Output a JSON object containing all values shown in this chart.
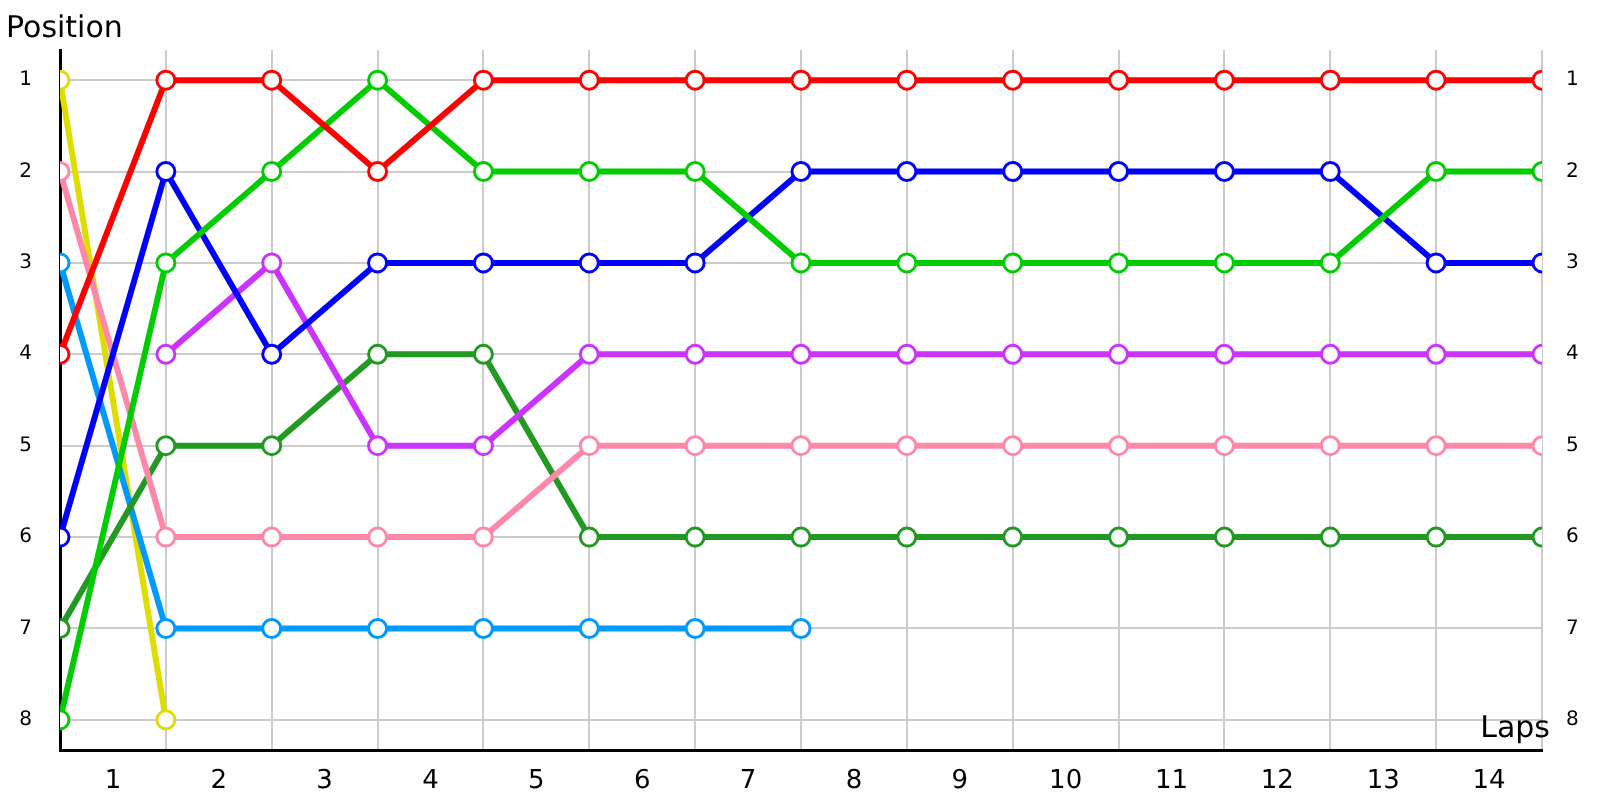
{
  "chart_data": {
    "type": "line",
    "xlabel": "Laps",
    "ylabel": "Position",
    "x": [
      0,
      1,
      2,
      3,
      4,
      5,
      6,
      7,
      8,
      9,
      10,
      11,
      12,
      13,
      14
    ],
    "series": [
      {
        "color": "#ff0000",
        "values": [
          4,
          1,
          1,
          2,
          1,
          1,
          1,
          1,
          1,
          1,
          1,
          1,
          1,
          1,
          1
        ]
      },
      {
        "color": "#00cc00",
        "values": [
          8,
          3,
          2,
          1,
          2,
          2,
          2,
          3,
          3,
          3,
          3,
          3,
          3,
          2,
          2
        ]
      },
      {
        "color": "#0000ff",
        "values": [
          6,
          2,
          4,
          3,
          3,
          3,
          3,
          2,
          2,
          2,
          2,
          2,
          2,
          3,
          3
        ]
      },
      {
        "color": "#cc33ff",
        "values": [
          null,
          4,
          3,
          5,
          5,
          4,
          4,
          4,
          4,
          4,
          4,
          4,
          4,
          4,
          4
        ]
      },
      {
        "color": "#ff88aa",
        "values": [
          2,
          6,
          6,
          6,
          6,
          5,
          5,
          5,
          5,
          5,
          5,
          5,
          5,
          5,
          5
        ]
      },
      {
        "color": "#229922",
        "values": [
          7,
          5,
          5,
          4,
          4,
          6,
          6,
          6,
          6,
          6,
          6,
          6,
          6,
          6,
          6
        ]
      },
      {
        "color": "#0099ff",
        "values": [
          3,
          7,
          7,
          7,
          7,
          7,
          7,
          7,
          null,
          null,
          null,
          null,
          null,
          null,
          null
        ]
      },
      {
        "color": "#dddd00",
        "values": [
          1,
          8,
          null,
          null,
          null,
          null,
          null,
          null,
          null,
          null,
          null,
          null,
          null,
          null,
          null
        ]
      }
    ],
    "xlim": [
      0,
      14
    ],
    "xticks": [
      {
        "value": 0.5,
        "label": "1"
      },
      {
        "value": 1.5,
        "label": "2"
      },
      {
        "value": 2.5,
        "label": "3"
      },
      {
        "value": 3.5,
        "label": "4"
      },
      {
        "value": 4.5,
        "label": "5"
      },
      {
        "value": 5.5,
        "label": "6"
      },
      {
        "value": 6.5,
        "label": "7"
      },
      {
        "value": 7.5,
        "label": "8"
      },
      {
        "value": 8.5,
        "label": "9"
      },
      {
        "value": 9.5,
        "label": "10"
      },
      {
        "value": 10.5,
        "label": "11"
      },
      {
        "value": 11.5,
        "label": "12"
      },
      {
        "value": 12.5,
        "label": "13"
      },
      {
        "value": 13.5,
        "label": "14"
      },
      {
        "value": 1,
        "label": null
      },
      {
        "value": 2,
        "label": null
      },
      {
        "value": 3,
        "label": null
      },
      {
        "value": 4,
        "label": null
      },
      {
        "value": 5,
        "label": null
      },
      {
        "value": 6,
        "label": null
      },
      {
        "value": 7,
        "label": null
      },
      {
        "value": 8,
        "label": null
      },
      {
        "value": 9,
        "label": null
      },
      {
        "value": 10,
        "label": null
      },
      {
        "value": 11,
        "label": null
      },
      {
        "value": 12,
        "label": null
      },
      {
        "value": 13,
        "label": null
      },
      {
        "value": 14,
        "label": null
      }
    ],
    "ylim": [
      8.33,
      0.67
    ],
    "yticks": [
      1,
      2,
      3,
      4,
      5,
      6,
      7,
      8
    ],
    "y2lim": [
      8.33,
      0.67
    ],
    "y2ticks": [
      1,
      2,
      3,
      4,
      5,
      6,
      7,
      8
    ],
    "grid": true,
    "legend": false,
    "marker": "circle",
    "line_style": "solid"
  }
}
